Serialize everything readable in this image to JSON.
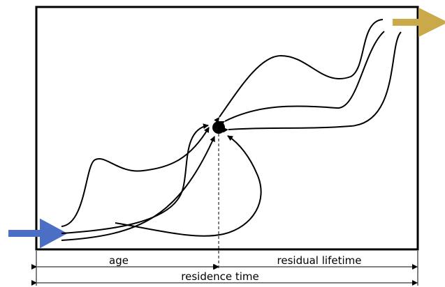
{
  "labels": {
    "age": "age",
    "residual_lifetime": "residual lifetime",
    "residence_time": "residence time"
  }
}
